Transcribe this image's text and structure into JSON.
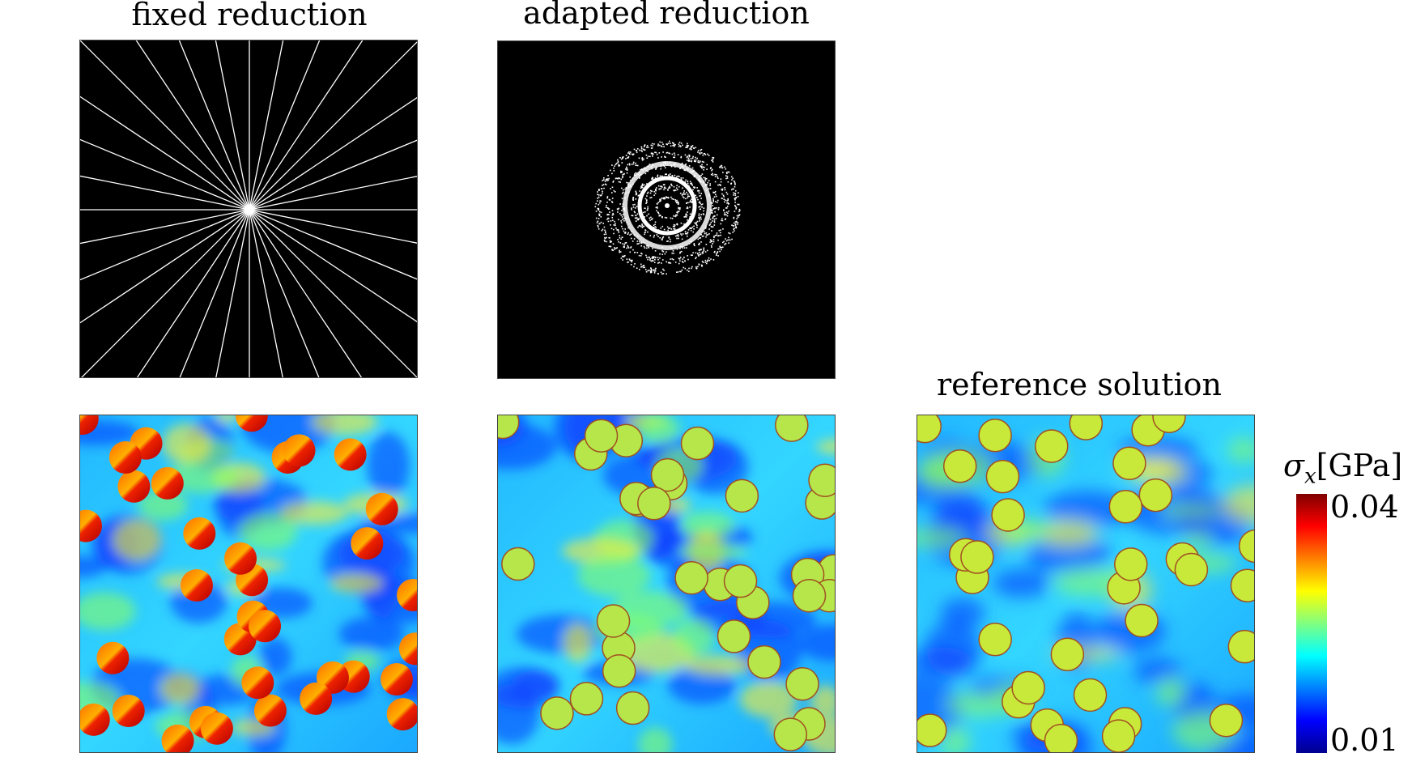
{
  "titles": {
    "fixed": "fixed reduction",
    "adapted": "adapted reduction",
    "reference": "reference solution"
  },
  "colorbar": {
    "symbol": "σ",
    "subscript": "x",
    "unit": "[GPa]",
    "max": "0.04",
    "min": "0.01"
  },
  "colors": {
    "jet": [
      "#00008f",
      "#0000ff",
      "#0080ff",
      "#00ffff",
      "#80ff80",
      "#ffff00",
      "#ff8000",
      "#ff0000",
      "#800000"
    ]
  }
}
